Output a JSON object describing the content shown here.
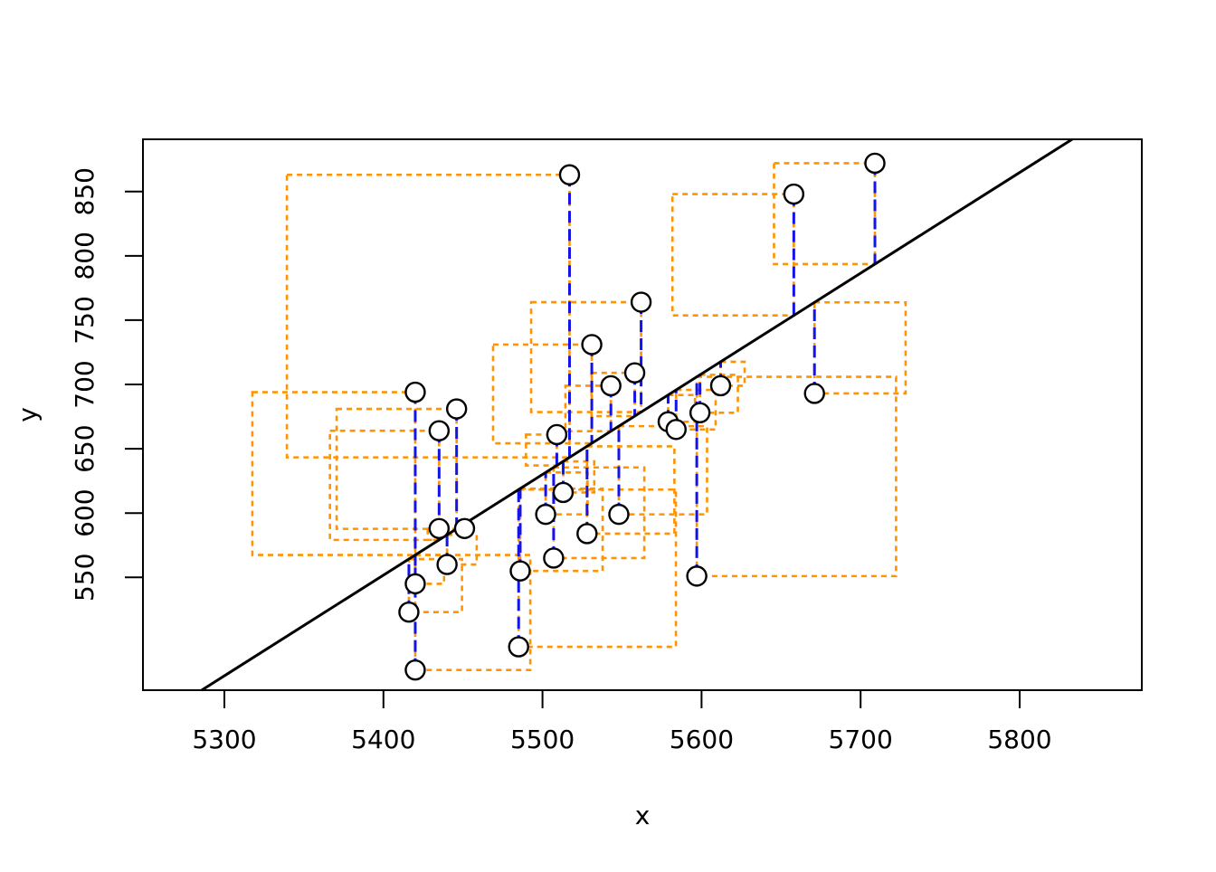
{
  "chart_data": {
    "type": "scatter",
    "title": "",
    "xlabel": "x",
    "ylabel": "y",
    "x_ticks": [
      5300,
      5400,
      5500,
      5600,
      5700,
      5800
    ],
    "y_ticks": [
      550,
      600,
      650,
      700,
      750,
      800,
      850
    ],
    "xlim": [
      5248.8,
      5876.8
    ],
    "ylim": [
      462.3,
      890.6
    ],
    "grid": false,
    "legend_position": "none",
    "points": [
      [
        5416,
        523
      ],
      [
        5420,
        478
      ],
      [
        5420,
        545
      ],
      [
        5420,
        694
      ],
      [
        5435,
        588
      ],
      [
        5435,
        664
      ],
      [
        5440,
        560
      ],
      [
        5446,
        681
      ],
      [
        5451,
        588
      ],
      [
        5485,
        496
      ],
      [
        5486,
        555
      ],
      [
        5502,
        599
      ],
      [
        5507,
        565
      ],
      [
        5509,
        661
      ],
      [
        5513,
        616
      ],
      [
        5517,
        863
      ],
      [
        5528,
        584
      ],
      [
        5531,
        731
      ],
      [
        5543,
        699
      ],
      [
        5548,
        599
      ],
      [
        5558,
        709
      ],
      [
        5562,
        764
      ],
      [
        5579,
        671
      ],
      [
        5584,
        665
      ],
      [
        5597,
        551
      ],
      [
        5599,
        678
      ],
      [
        5612,
        699
      ],
      [
        5658,
        848
      ],
      [
        5671,
        693
      ],
      [
        5709,
        872
      ]
    ],
    "regression_line": {
      "slope": 0.7826,
      "intercept": -3674.3
    },
    "series": [
      {
        "name": "data-points",
        "marker": "open-circle",
        "color": "#000000"
      },
      {
        "name": "fitted-line",
        "style": "solid",
        "color": "#000000"
      },
      {
        "name": "residual-segments",
        "style": "dashed",
        "orientation": "vertical",
        "color": "#1414E8"
      },
      {
        "name": "residual-squares",
        "style": "dashed",
        "color": "#FF9300"
      }
    ]
  }
}
